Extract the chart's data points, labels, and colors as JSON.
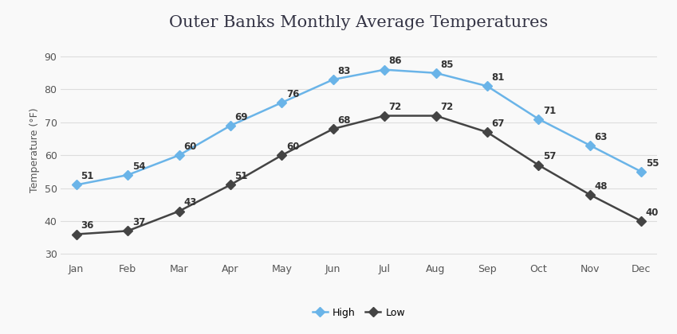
{
  "title": "Outer Banks Monthly Average Temperatures",
  "months": [
    "Jan",
    "Feb",
    "Mar",
    "Apr",
    "May",
    "Jun",
    "Jul",
    "Aug",
    "Sep",
    "Oct",
    "Nov",
    "Dec"
  ],
  "high": [
    51,
    54,
    60,
    69,
    76,
    83,
    86,
    85,
    81,
    71,
    63,
    55
  ],
  "low": [
    36,
    37,
    43,
    51,
    60,
    68,
    72,
    72,
    67,
    57,
    48,
    40
  ],
  "high_color": "#6ab4e8",
  "low_color": "#444444",
  "ylabel": "Temperature (°F)",
  "ylim": [
    28,
    95
  ],
  "yticks": [
    30,
    40,
    50,
    60,
    70,
    80,
    90
  ],
  "legend_labels": [
    "High",
    "Low"
  ],
  "background_color": "#f9f9f9",
  "grid_color": "#dddddd",
  "title_fontsize": 15,
  "label_fontsize": 9,
  "tick_fontsize": 9,
  "annotation_fontsize": 8.5,
  "marker": "D",
  "linewidth": 1.8,
  "markersize": 6
}
